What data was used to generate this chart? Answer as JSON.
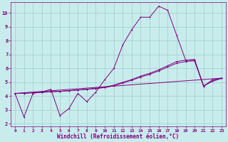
{
  "background_color": "#c8ecec",
  "line_color": "#800080",
  "grid_color": "#a0cccc",
  "xlabel": "Windchill (Refroidissement éolien,°C)",
  "xlim": [
    -0.5,
    23.5
  ],
  "ylim": [
    1.8,
    10.8
  ],
  "xticks": [
    0,
    1,
    2,
    3,
    4,
    5,
    6,
    7,
    8,
    9,
    10,
    11,
    12,
    13,
    14,
    15,
    16,
    17,
    18,
    19,
    20,
    21,
    22,
    23
  ],
  "yticks": [
    2,
    3,
    4,
    5,
    6,
    7,
    8,
    9,
    10
  ],
  "curve_main_x": [
    0,
    1,
    2,
    3,
    4,
    5,
    6,
    7,
    8,
    9,
    10,
    11,
    12,
    13,
    14,
    15,
    16,
    17,
    18,
    19,
    20,
    21,
    22,
    23
  ],
  "curve_main_y": [
    4.2,
    2.5,
    4.2,
    4.3,
    4.5,
    2.6,
    3.1,
    4.2,
    3.6,
    4.3,
    5.2,
    6.0,
    7.7,
    8.8,
    9.7,
    9.7,
    10.5,
    10.2,
    8.4,
    6.6,
    6.6,
    4.7,
    5.2,
    5.3
  ],
  "curve2_x": [
    0,
    1,
    2,
    3,
    4,
    5,
    6,
    7,
    8,
    9,
    10,
    11,
    12,
    13,
    14,
    15,
    16,
    17,
    18,
    19,
    20,
    21,
    22,
    23
  ],
  "curve2_y": [
    4.2,
    4.2,
    4.25,
    4.28,
    4.32,
    4.35,
    4.4,
    4.45,
    4.5,
    4.57,
    4.65,
    4.8,
    5.0,
    5.2,
    5.45,
    5.65,
    5.9,
    6.2,
    6.5,
    6.6,
    6.65,
    4.75,
    5.1,
    5.3
  ],
  "curve3_x": [
    0,
    1,
    2,
    3,
    4,
    5,
    6,
    7,
    8,
    9,
    10,
    11,
    12,
    13,
    14,
    15,
    16,
    17,
    18,
    19,
    20,
    21,
    22,
    23
  ],
  "curve3_y": [
    4.2,
    4.21,
    4.25,
    4.28,
    4.32,
    4.35,
    4.39,
    4.44,
    4.49,
    4.55,
    4.62,
    4.75,
    4.95,
    5.15,
    5.38,
    5.58,
    5.82,
    6.1,
    6.38,
    6.5,
    6.55,
    4.73,
    5.08,
    5.28
  ],
  "curve4_x": [
    0,
    23
  ],
  "curve4_y": [
    4.2,
    5.3
  ]
}
